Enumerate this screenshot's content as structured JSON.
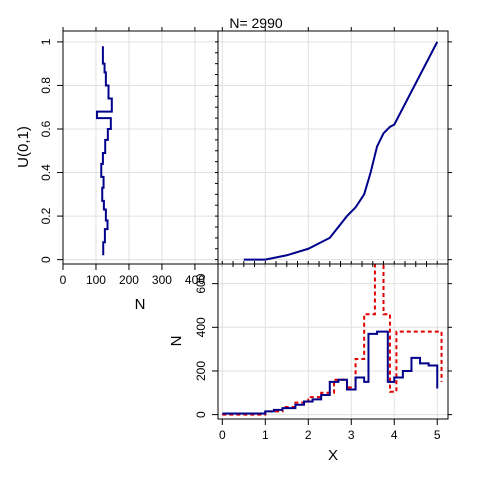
{
  "title": "N= 2990",
  "colors": {
    "primary": "#00008b",
    "reference": "#e00000",
    "grid": "#e0e0e0"
  },
  "chart_data": [
    {
      "panel": "left-marginal",
      "type": "line",
      "xlabel": "N",
      "ylabel": "U(0,1)",
      "xlim": [
        0,
        470
      ],
      "ylim": [
        -0.02,
        1.05
      ],
      "xticks": [
        0,
        100,
        200,
        300,
        400
      ],
      "xtick_labels": [
        "0",
        "100",
        "200",
        "300",
        "400"
      ],
      "yticks": [
        0,
        0.2,
        0.4,
        0.6,
        0.8,
        1
      ],
      "ytick_labels": [
        "0",
        "0.2",
        "0.4",
        "0.6",
        "0.8",
        "1"
      ],
      "grid": true,
      "series": [
        {
          "style": "step",
          "color": "#00008b",
          "points": [
            [
              122,
              0.02
            ],
            [
              122,
              0.08
            ],
            [
              127,
              0.08
            ],
            [
              127,
              0.14
            ],
            [
              135,
              0.14
            ],
            [
              135,
              0.18
            ],
            [
              130,
              0.18
            ],
            [
              130,
              0.23
            ],
            [
              124,
              0.23
            ],
            [
              124,
              0.27
            ],
            [
              119,
              0.27
            ],
            [
              119,
              0.33
            ],
            [
              123,
              0.33
            ],
            [
              123,
              0.38
            ],
            [
              116,
              0.38
            ],
            [
              116,
              0.44
            ],
            [
              121,
              0.44
            ],
            [
              121,
              0.49
            ],
            [
              128,
              0.49
            ],
            [
              128,
              0.55
            ],
            [
              136,
              0.55
            ],
            [
              136,
              0.6
            ],
            [
              145,
              0.6
            ],
            [
              145,
              0.65
            ],
            [
              103,
              0.65
            ],
            [
              103,
              0.68
            ],
            [
              148,
              0.68
            ],
            [
              148,
              0.74
            ],
            [
              138,
              0.74
            ],
            [
              138,
              0.8
            ],
            [
              130,
              0.8
            ],
            [
              130,
              0.86
            ],
            [
              126,
              0.86
            ],
            [
              126,
              0.9
            ],
            [
              121,
              0.9
            ],
            [
              121,
              0.98
            ]
          ]
        }
      ]
    },
    {
      "panel": "top-right-cdf",
      "type": "line",
      "xlim": [
        -0.1,
        5.25
      ],
      "ylim": [
        -0.02,
        1.05
      ],
      "grid": true,
      "series": [
        {
          "style": "line",
          "color": "#00008b",
          "points": [
            [
              0.5,
              0.0
            ],
            [
              1.0,
              0.0
            ],
            [
              1.5,
              0.02
            ],
            [
              2.0,
              0.05
            ],
            [
              2.5,
              0.1
            ],
            [
              2.9,
              0.2
            ],
            [
              3.1,
              0.24
            ],
            [
              3.3,
              0.3
            ],
            [
              3.45,
              0.4
            ],
            [
              3.6,
              0.52
            ],
            [
              3.75,
              0.58
            ],
            [
              3.9,
              0.61
            ],
            [
              4.0,
              0.62
            ],
            [
              5.0,
              1.0
            ]
          ]
        }
      ]
    },
    {
      "panel": "bottom-right-density",
      "type": "line",
      "xlabel": "X",
      "ylabel": "N",
      "xlim": [
        -0.1,
        5.25
      ],
      "ylim": [
        -20,
        690
      ],
      "xticks": [
        0,
        1,
        2,
        3,
        4,
        5
      ],
      "xtick_labels": [
        "0",
        "1",
        "2",
        "3",
        "4",
        "5"
      ],
      "yticks": [
        0,
        200,
        400,
        600
      ],
      "ytick_labels": [
        "0",
        "200",
        "400",
        "600"
      ],
      "grid": true,
      "series": [
        {
          "style": "step",
          "color": "#00008b",
          "points": [
            [
              0,
              5
            ],
            [
              1.0,
              5
            ],
            [
              1.0,
              15
            ],
            [
              1.2,
              15
            ],
            [
              1.2,
              22
            ],
            [
              1.4,
              22
            ],
            [
              1.4,
              30
            ],
            [
              1.7,
              30
            ],
            [
              1.7,
              45
            ],
            [
              1.9,
              45
            ],
            [
              1.9,
              60
            ],
            [
              2.1,
              60
            ],
            [
              2.1,
              70
            ],
            [
              2.3,
              70
            ],
            [
              2.3,
              90
            ],
            [
              2.5,
              90
            ],
            [
              2.5,
              150
            ],
            [
              2.7,
              150
            ],
            [
              2.7,
              160
            ],
            [
              2.9,
              160
            ],
            [
              2.9,
              115
            ],
            [
              3.1,
              115
            ],
            [
              3.1,
              170
            ],
            [
              3.3,
              170
            ],
            [
              3.3,
              150
            ],
            [
              3.4,
              150
            ],
            [
              3.4,
              370
            ],
            [
              3.6,
              370
            ],
            [
              3.6,
              380
            ],
            [
              3.85,
              380
            ],
            [
              3.85,
              150
            ],
            [
              4.0,
              150
            ],
            [
              4.0,
              170
            ],
            [
              4.2,
              170
            ],
            [
              4.2,
              200
            ],
            [
              4.4,
              200
            ],
            [
              4.4,
              260
            ],
            [
              4.6,
              260
            ],
            [
              4.6,
              235
            ],
            [
              4.8,
              235
            ],
            [
              4.8,
              225
            ],
            [
              5.0,
              225
            ],
            [
              5.0,
              120
            ]
          ]
        },
        {
          "style": "step-dashed",
          "color": "#e00000",
          "points": [
            [
              0,
              0
            ],
            [
              1.0,
              0
            ],
            [
              1.0,
              15
            ],
            [
              1.4,
              15
            ],
            [
              1.4,
              35
            ],
            [
              1.7,
              35
            ],
            [
              1.7,
              55
            ],
            [
              2.0,
              55
            ],
            [
              2.0,
              80
            ],
            [
              2.3,
              80
            ],
            [
              2.3,
              100
            ],
            [
              2.6,
              100
            ],
            [
              2.6,
              160
            ],
            [
              2.9,
              160
            ],
            [
              2.9,
              125
            ],
            [
              3.1,
              125
            ],
            [
              3.1,
              255
            ],
            [
              3.3,
              255
            ],
            [
              3.3,
              460
            ],
            [
              3.55,
              460
            ],
            [
              3.55,
              740
            ],
            [
              3.75,
              740
            ],
            [
              3.75,
              460
            ],
            [
              3.9,
              460
            ],
            [
              3.9,
              105
            ],
            [
              4.05,
              105
            ],
            [
              4.05,
              380
            ],
            [
              5.1,
              380
            ],
            [
              5.1,
              150
            ]
          ]
        }
      ]
    }
  ]
}
